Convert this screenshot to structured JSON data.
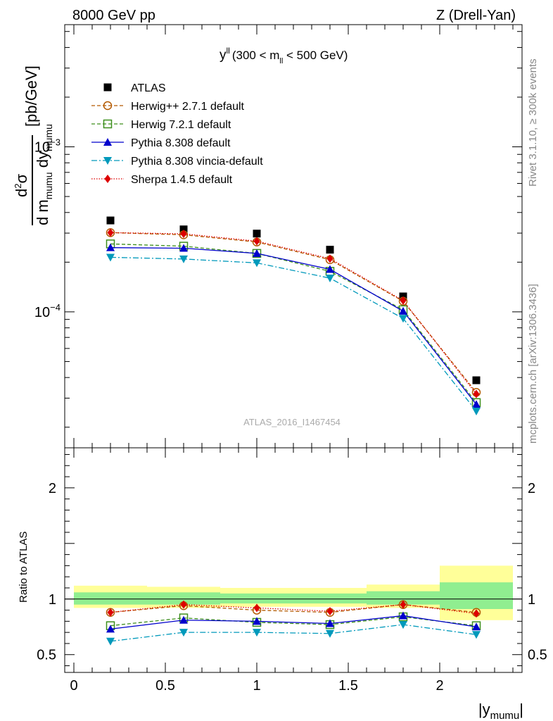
{
  "header": {
    "left": "8000 GeV pp",
    "right": "Z (Drell-Yan)"
  },
  "side_labels": {
    "rivet": "Rivet 3.1.10, ≥ 300k events",
    "mcplots": "mcplots.cern.ch [arXiv:1306.3436]"
  },
  "watermark": "ATLAS_2016_I1467454",
  "plot_title": {
    "main": "y",
    "sup": "ll",
    "cond_pre": "(300 < m",
    "cond_sub": "ll",
    "cond_post": " < 500 GeV)"
  },
  "ylabel_main": {
    "pre": "d",
    "sup": "2",
    "sigma": "σ",
    "den_d": "d m",
    "den_sub1": "mumu",
    "den_dy": " dy",
    "den_sub2": "mumu",
    "units": "[pb/GeV]"
  },
  "ylabel_ratio": "Ratio to ATLAS",
  "xlabel": {
    "main": "|y",
    "sub": "mumu",
    "end": "|"
  },
  "colors": {
    "atlas": "#000000",
    "herwigpp": "#b35900",
    "herwig7": "#3d8f1c",
    "pythia": "#0000cc",
    "vincia": "#0099bb",
    "sherpa": "#dd0000",
    "band_inner": "#90ee90",
    "band_outer": "#ffff99"
  },
  "chart_data": [
    {
      "type": "line",
      "title": "y^ll (300 < m_ll < 500 GeV)",
      "xlabel": "|y_mumu|",
      "ylabel": "d2sigma / d m_mumu dy_mumu [pb/GeV]",
      "yscale": "log",
      "ylim": [
        1.5e-05,
        0.0055
      ],
      "xlim": [
        -0.05,
        2.45
      ],
      "x_tick_labels": [
        "0",
        "0.5",
        "1",
        "1.5",
        "2"
      ],
      "y_tick_labels": [
        "10^-4",
        "10^-3"
      ],
      "x": [
        0.2,
        0.6,
        1.0,
        1.4,
        1.8,
        2.2
      ],
      "bin_edges": [
        0.0,
        0.4,
        0.8,
        1.2,
        1.6,
        2.0,
        2.4
      ],
      "series": [
        {
          "name": "ATLAS",
          "key": "atlas",
          "marker": "square",
          "values": [
            0.000358,
            0.000316,
            0.000298,
            0.000238,
            0.000124,
            3.85e-05
          ]
        },
        {
          "name": "Herwig++ 2.7.1 default",
          "key": "herwigpp",
          "marker": "circle-open",
          "dash": "5,3",
          "values": [
            0.000302,
            0.000293,
            0.000265,
            0.000207,
            0.000116,
            3.25e-05
          ]
        },
        {
          "name": "Herwig 7.2.1 default",
          "key": "herwig7",
          "marker": "square-open",
          "dash": "5,3",
          "values": [
            0.000258,
            0.00025,
            0.000226,
            0.000176,
            0.000103,
            2.82e-05
          ]
        },
        {
          "name": "Pythia 8.308 default",
          "key": "pythia",
          "marker": "triangle-up",
          "dash": "",
          "values": [
            0.000245,
            0.000243,
            0.000226,
            0.000181,
            0.000101,
            2.75e-05
          ]
        },
        {
          "name": "Pythia 8.308 vincia-default",
          "key": "vincia",
          "marker": "triangle-down",
          "dash": "8,3,2,3",
          "values": [
            0.000214,
            0.000209,
            0.000198,
            0.00016,
            9.12e-05,
            2.5e-05
          ]
        },
        {
          "name": "Sherpa 1.4.5 default",
          "key": "sherpa",
          "marker": "diamond",
          "dash": "1.5,2",
          "values": [
            0.000302,
            0.000297,
            0.000268,
            0.00021,
            0.000117,
            3.18e-05
          ]
        }
      ]
    },
    {
      "type": "line",
      "title": "Ratio to ATLAS",
      "xlabel": "|y_mumu|",
      "ylabel": "Ratio to ATLAS",
      "ylim": [
        0.34,
        2.36
      ],
      "xlim": [
        -0.05,
        2.45
      ],
      "x_tick_labels": [
        "0",
        "0.5",
        "1",
        "1.5",
        "2"
      ],
      "y_tick_labels": [
        "0.5",
        "1",
        "2"
      ],
      "x": [
        0.2,
        0.6,
        1.0,
        1.4,
        1.8,
        2.2
      ],
      "bin_edges": [
        0.0,
        0.4,
        0.8,
        1.2,
        1.6,
        2.0,
        2.4
      ],
      "band_inner": [
        [
          0.95,
          1.06
        ],
        [
          0.95,
          1.06
        ],
        [
          0.96,
          1.05
        ],
        [
          0.96,
          1.05
        ],
        [
          0.95,
          1.07
        ],
        [
          0.91,
          1.15
        ]
      ],
      "band_outer": [
        [
          0.92,
          1.12
        ],
        [
          0.92,
          1.11
        ],
        [
          0.93,
          1.1
        ],
        [
          0.93,
          1.1
        ],
        [
          0.92,
          1.13
        ],
        [
          0.81,
          1.3
        ]
      ],
      "series": [
        {
          "name": "Herwig++ 2.7.1 default",
          "key": "herwigpp",
          "marker": "circle-open",
          "dash": "5,3",
          "values": [
            0.88,
            0.94,
            0.9,
            0.88,
            0.95,
            0.88
          ]
        },
        {
          "name": "Herwig 7.2.1 default",
          "key": "herwig7",
          "marker": "square-open",
          "dash": "5,3",
          "values": [
            0.76,
            0.83,
            0.79,
            0.77,
            0.84,
            0.76
          ]
        },
        {
          "name": "Pythia 8.308 default",
          "key": "pythia",
          "marker": "triangle-up",
          "dash": "",
          "values": [
            0.73,
            0.81,
            0.8,
            0.78,
            0.85,
            0.75
          ]
        },
        {
          "name": "Pythia 8.308 vincia-default",
          "key": "vincia",
          "marker": "triangle-down",
          "dash": "8,3,2,3",
          "values": [
            0.62,
            0.7,
            0.7,
            0.69,
            0.77,
            0.68
          ]
        },
        {
          "name": "Sherpa 1.4.5 default",
          "key": "sherpa",
          "marker": "diamond",
          "dash": "1.5,2",
          "values": [
            0.88,
            0.95,
            0.92,
            0.89,
            0.95,
            0.87
          ]
        }
      ]
    }
  ]
}
